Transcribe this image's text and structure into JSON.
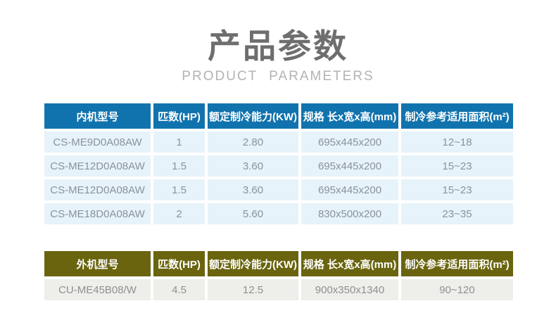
{
  "page": {
    "title": "产品参数",
    "subtitle": "PRODUCT PARAMETERS"
  },
  "colors": {
    "indoor_header_bg": "#1173ae",
    "indoor_cell_bg": "#e7f3fa",
    "outdoor_header_bg": "#6a640e",
    "outdoor_cell_bg": "#eeeeea",
    "header_text": "#ffffff",
    "cell_text": "#8b9298",
    "title_text": "#6e6e6e",
    "subtitle_text": "#b3b3b3"
  },
  "indoor_table": {
    "columns": [
      "内机型号",
      "匹数(HP)",
      "额定制冷能力(KW)",
      "规格 长x宽x高(mm)",
      "制冷参考适用面积(m²)"
    ],
    "rows": [
      [
        "CS-ME9D0A08AW",
        "1",
        "2.80",
        "695x445x200",
        "12~18"
      ],
      [
        "CS-ME12D0A08AW",
        "1.5",
        "3.60",
        "695x445x200",
        "15~23"
      ],
      [
        "CS-ME12D0A08AW",
        "1.5",
        "3.60",
        "695x445x200",
        "15~23"
      ],
      [
        "CS-ME18D0A08AW",
        "2",
        "5.60",
        "830x500x200",
        "23~35"
      ]
    ]
  },
  "outdoor_table": {
    "columns": [
      "外机型号",
      "匹数(HP)",
      "额定制冷能力(KW)",
      "规格 长x宽x高(mm)",
      "制冷参考适用面积(m²)"
    ],
    "rows": [
      [
        "CU-ME45B08/W",
        "4.5",
        "12.5",
        "900x350x1340",
        "90~120"
      ]
    ]
  }
}
